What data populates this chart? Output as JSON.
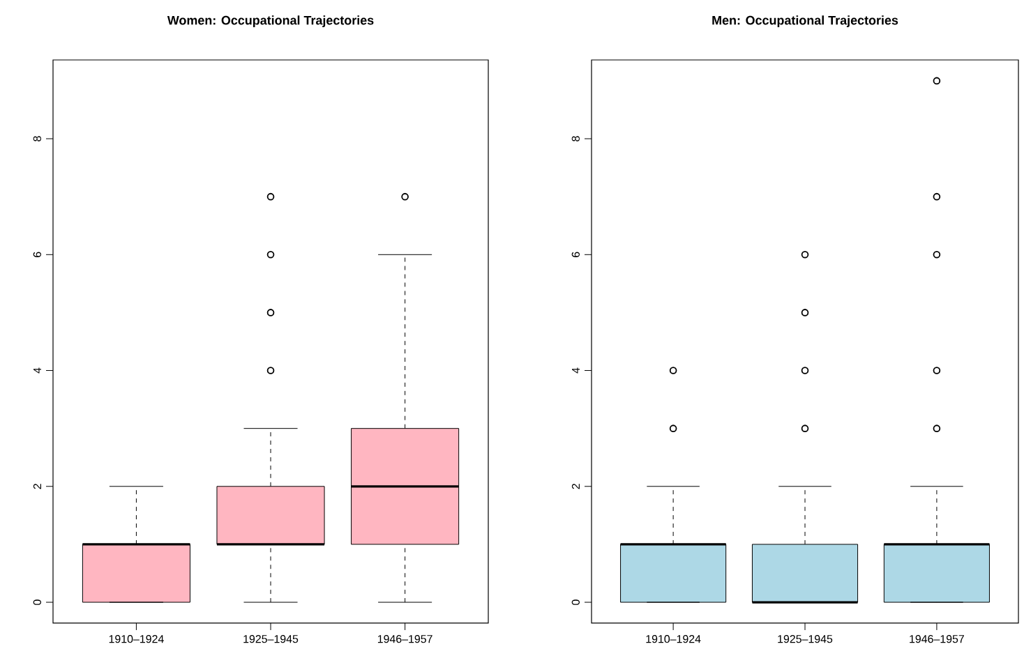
{
  "chart_data": [
    {
      "type": "box",
      "title": "Women: Occupational Trajectories",
      "categories": [
        "1910–1924",
        "1925–1945",
        "1946–1957"
      ],
      "color": "#ffb6c1",
      "ylim": [
        -0.36,
        9.36
      ],
      "yticks": [
        0,
        2,
        4,
        6,
        8
      ],
      "boxes": [
        {
          "low": 0,
          "q1": 0,
          "median": 1,
          "q3": 1,
          "high": 2
        },
        {
          "low": 0,
          "q1": 1,
          "median": 1,
          "q3": 2,
          "high": 3,
          "outliers": [
            4,
            5,
            6,
            7
          ]
        },
        {
          "low": 0,
          "q1": 1,
          "median": 2,
          "q3": 3,
          "high": 6,
          "outliers": [
            7
          ]
        }
      ]
    },
    {
      "type": "box",
      "title": "Men: Occupational Trajectories",
      "categories": [
        "1910–1924",
        "1925–1945",
        "1946–1957"
      ],
      "color": "#add8e6",
      "ylim": [
        -0.36,
        9.36
      ],
      "yticks": [
        0,
        2,
        4,
        6,
        8
      ],
      "boxes": [
        {
          "low": 0,
          "q1": 0,
          "median": 1,
          "q3": 1,
          "high": 2,
          "outliers": [
            3,
            4
          ]
        },
        {
          "low": 0,
          "q1": 0,
          "median": 0,
          "q3": 1,
          "high": 2,
          "outliers": [
            3,
            4,
            5,
            6
          ]
        },
        {
          "low": 0,
          "q1": 0,
          "median": 1,
          "q3": 1,
          "high": 2,
          "outliers": [
            3,
            4,
            6,
            7,
            9
          ]
        }
      ]
    }
  ]
}
